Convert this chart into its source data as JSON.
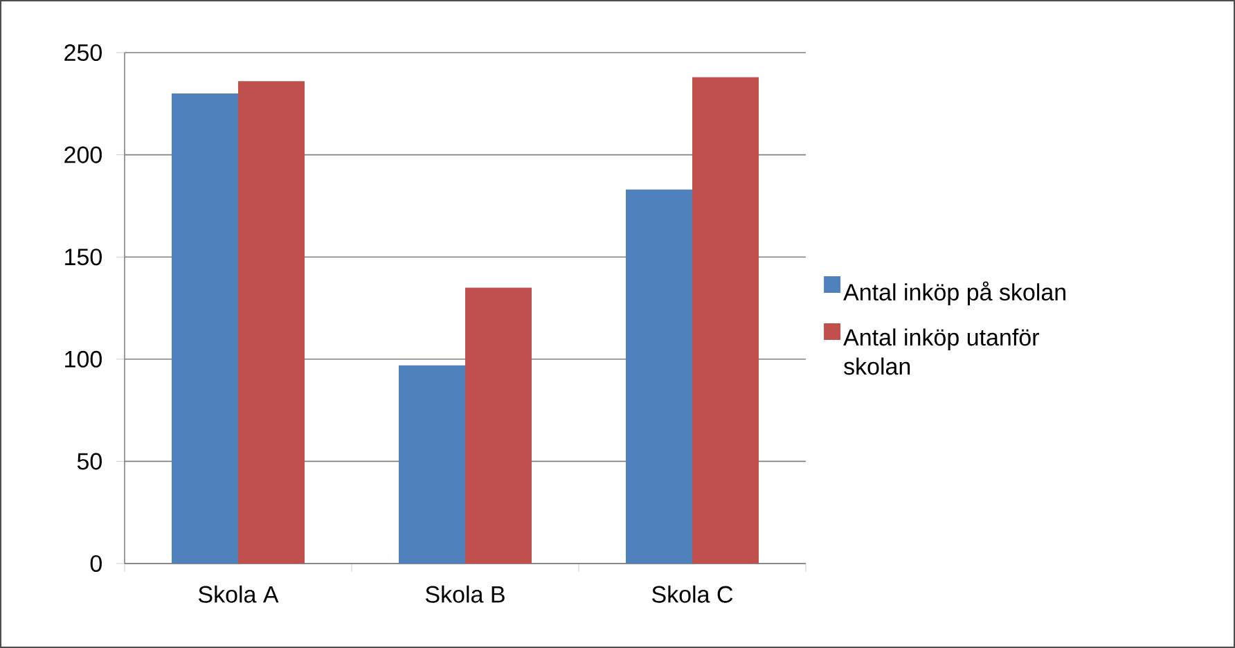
{
  "chart_data": {
    "type": "bar",
    "categories": [
      "Skola A",
      "Skola B",
      "Skola C"
    ],
    "series": [
      {
        "name": "Antal inköp på skolan",
        "color": "#4f81bd",
        "values": [
          230,
          97,
          183
        ]
      },
      {
        "name": "Antal inköp utanför skolan",
        "color": "#c0504d",
        "values": [
          236,
          135,
          238
        ]
      }
    ],
    "ylim": [
      0,
      250
    ],
    "yticks": [
      0,
      50,
      100,
      150,
      200,
      250
    ],
    "grid": "y",
    "legend": "right"
  }
}
